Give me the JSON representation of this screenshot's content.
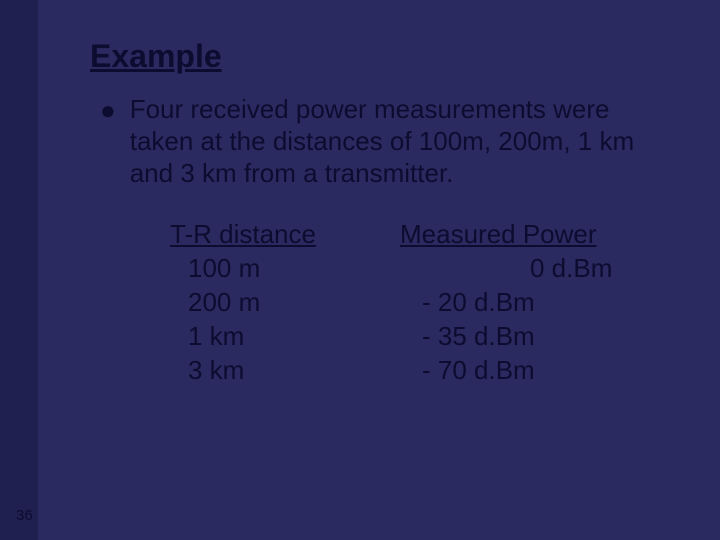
{
  "slide": {
    "background_color": "#2a2a60",
    "sidebar_color": "#1f1f50",
    "text_color": "#0c0c30",
    "title": "Example",
    "title_fontsize": 32,
    "body_fontsize": 26,
    "bullet_glyph": "●",
    "bullet_text": "Four received power measurements were taken at the distances of 100m, 200m, 1 km and 3 km from a transmitter.",
    "table": {
      "columns": [
        "T-R distance",
        "Measured Power"
      ],
      "rows": [
        [
          "100 m",
          "0 d.Bm"
        ],
        [
          "200 m",
          "- 20 d.Bm"
        ],
        [
          "1 km",
          "- 35 d.Bm"
        ],
        [
          "3 km",
          "- 70 d.Bm"
        ]
      ]
    },
    "page_number": "36"
  }
}
